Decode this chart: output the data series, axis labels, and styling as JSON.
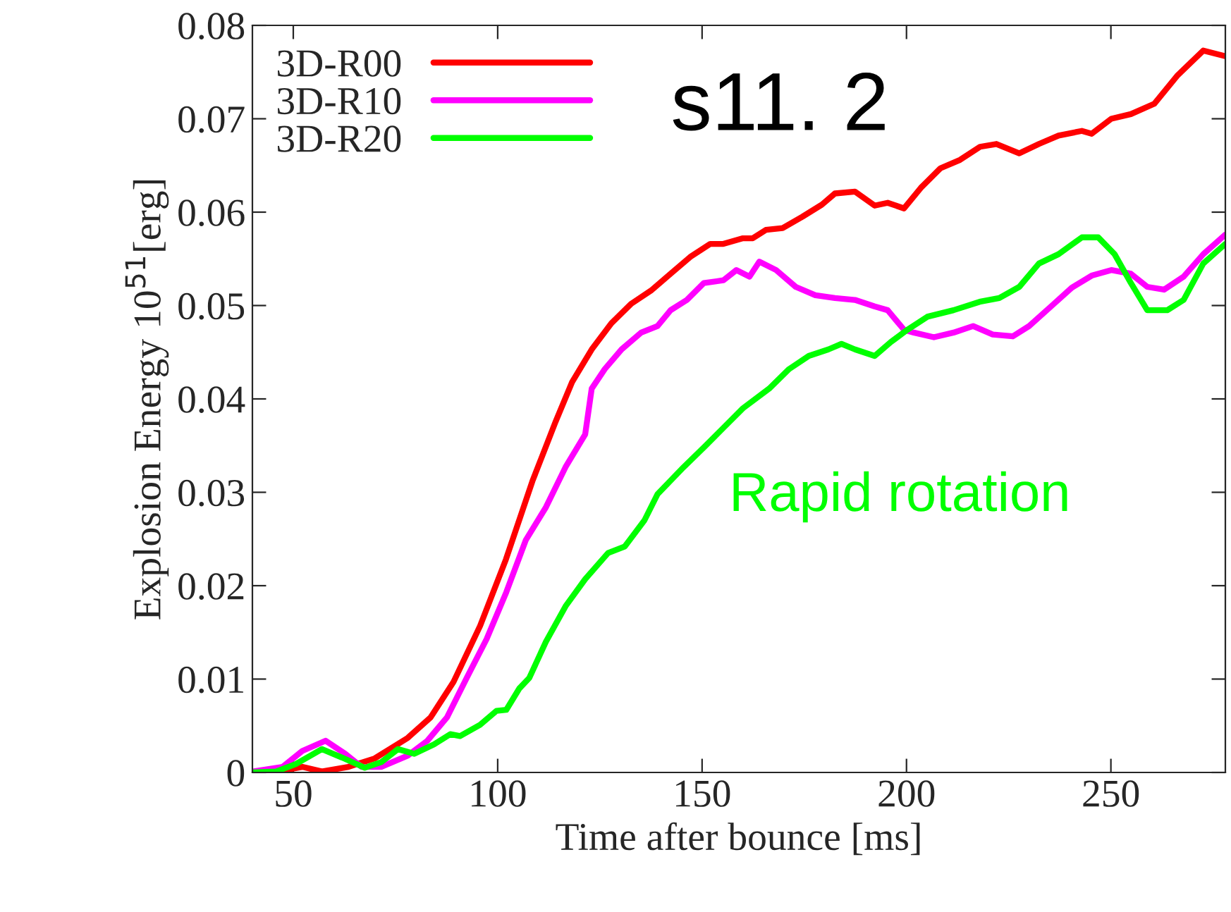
{
  "chart_data": {
    "type": "line",
    "xlabel": "Time after bounce [ms]",
    "ylabel": "Explosion Energy 10$^{51}$[erg]",
    "xlim": [
      40,
      278
    ],
    "xticks": [
      50,
      100,
      150,
      200,
      250
    ],
    "ylim": [
      0,
      0.08
    ],
    "yticks": [
      0,
      0.01,
      0.02,
      0.03,
      0.04,
      0.05,
      0.06,
      0.07,
      0.08
    ],
    "grid": false,
    "legend": "top left",
    "marker": "none",
    "line_style": "solid",
    "annotations": [
      "s11. 2",
      "Rapid rotation"
    ],
    "series": [
      {
        "name": "3D-R00",
        "color": "#ff0000",
        "x": [
          40,
          47.4,
          52.2,
          57,
          63.5,
          69.9,
          78,
          83.6,
          89.2,
          95.7,
          102,
          108.5,
          114.2,
          118.2,
          123,
          127.8,
          132.7,
          137.5,
          142.3,
          147.1,
          152,
          155.2,
          160,
          162.4,
          165.6,
          169.7,
          174.5,
          179.3,
          182.5,
          187.4,
          192.2,
          195.4,
          199.4,
          203.5,
          208.3,
          213.1,
          218,
          222,
          227.6,
          232.4,
          237.2,
          242.9,
          245.3,
          250.1,
          254.9,
          260.6,
          266.2,
          272.6,
          278
        ],
        "values": [
          0,
          0.0002,
          0.0006,
          0.0001,
          0.0006,
          0.0015,
          0.0037,
          0.0059,
          0.0097,
          0.0157,
          0.0228,
          0.0312,
          0.0376,
          0.0418,
          0.0453,
          0.0481,
          0.0502,
          0.0516,
          0.0534,
          0.0552,
          0.0566,
          0.0566,
          0.0572,
          0.0572,
          0.0581,
          0.0583,
          0.0595,
          0.0608,
          0.062,
          0.0622,
          0.0607,
          0.061,
          0.0604,
          0.0626,
          0.0647,
          0.0656,
          0.067,
          0.0673,
          0.0663,
          0.0673,
          0.0682,
          0.0687,
          0.0684,
          0.07,
          0.0705,
          0.0716,
          0.0746,
          0.0773,
          0.0767
        ]
      },
      {
        "name": "3D-R10",
        "color": "#ff00ff",
        "x": [
          40,
          47.4,
          52.2,
          57.9,
          62.7,
          66.7,
          71.5,
          78,
          82.8,
          87.6,
          92.4,
          97.3,
          102.1,
          106.9,
          111.8,
          116.6,
          121.4,
          123,
          126.2,
          130.3,
          135.1,
          139.1,
          142.3,
          146.3,
          150.4,
          155.2,
          158.4,
          161.6,
          164,
          168.1,
          172.9,
          177.7,
          182.5,
          187.4,
          192.2,
          195.4,
          199.4,
          201.8,
          206.7,
          211.5,
          216.3,
          221.1,
          226,
          230,
          235.6,
          240.4,
          245.3,
          250.1,
          254.9,
          258.9,
          263,
          267.8,
          272.6,
          278
        ],
        "values": [
          0.0001,
          0.0006,
          0.0023,
          0.0034,
          0.002,
          0.0006,
          0.0006,
          0.0018,
          0.0034,
          0.0059,
          0.0101,
          0.0143,
          0.0193,
          0.0249,
          0.0284,
          0.0327,
          0.0362,
          0.0411,
          0.0432,
          0.0453,
          0.0471,
          0.0478,
          0.0495,
          0.0506,
          0.0524,
          0.0527,
          0.0538,
          0.0531,
          0.0547,
          0.0538,
          0.052,
          0.0511,
          0.0508,
          0.0506,
          0.0499,
          0.0495,
          0.0474,
          0.0471,
          0.0466,
          0.0471,
          0.0478,
          0.0469,
          0.0467,
          0.0478,
          0.05,
          0.0519,
          0.0532,
          0.0538,
          0.0534,
          0.052,
          0.0517,
          0.0531,
          0.0555,
          0.0576
        ]
      },
      {
        "name": "3D-R20",
        "color": "#00ff00",
        "x": [
          40,
          45.8,
          50.6,
          57,
          61.9,
          67.5,
          71.5,
          75.6,
          79.6,
          84.4,
          88.4,
          90.8,
          95.7,
          99.7,
          102.1,
          105.3,
          107.7,
          111.8,
          116.6,
          121.4,
          127,
          131.1,
          135.9,
          139.1,
          145.5,
          150.4,
          155.2,
          160,
          166.4,
          171.3,
          176.1,
          180.9,
          184.1,
          187.4,
          192.2,
          196.2,
          200.2,
          205.1,
          211.5,
          217.9,
          222.7,
          227.6,
          232.4,
          237.2,
          242.9,
          246.9,
          250.9,
          254.9,
          258.9,
          263.8,
          267.8,
          272.6,
          278
        ],
        "values": [
          0,
          0.0001,
          0.0009,
          0.0025,
          0.0016,
          0.0005,
          0.0011,
          0.0025,
          0.002,
          0.003,
          0.0041,
          0.0039,
          0.0051,
          0.0066,
          0.0067,
          0.009,
          0.0101,
          0.014,
          0.0178,
          0.0207,
          0.0235,
          0.0242,
          0.027,
          0.0298,
          0.0327,
          0.0348,
          0.0369,
          0.039,
          0.0411,
          0.0432,
          0.0446,
          0.0453,
          0.0459,
          0.0453,
          0.0446,
          0.0461,
          0.0474,
          0.0488,
          0.0495,
          0.0504,
          0.0508,
          0.052,
          0.0545,
          0.0555,
          0.0573,
          0.0573,
          0.0555,
          0.0524,
          0.0495,
          0.0495,
          0.0506,
          0.0545,
          0.0566
        ]
      }
    ]
  }
}
